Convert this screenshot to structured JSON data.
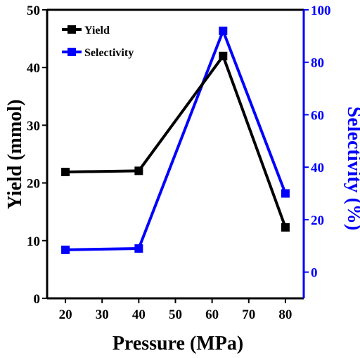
{
  "chart_data": {
    "type": "line",
    "x": [
      20,
      40,
      63,
      80
    ],
    "xlabel": "Pressure (MPa)",
    "xlim": [
      15,
      85
    ],
    "xticks": [
      20,
      30,
      40,
      50,
      60,
      70,
      80
    ],
    "series": [
      {
        "name": "Yield",
        "axis": "left",
        "color": "#000000",
        "values": [
          21.9,
          22.1,
          42.0,
          12.3
        ]
      },
      {
        "name": "Selectivity",
        "axis": "right",
        "color": "#0000ff",
        "values": [
          8.5,
          9.0,
          92.0,
          30.0
        ]
      }
    ],
    "y_left": {
      "label": "Yield (mmol)",
      "ylim": [
        0,
        50
      ],
      "ticks": [
        0,
        10,
        20,
        30,
        40,
        50
      ],
      "color": "#000000"
    },
    "y_right": {
      "label": "Selectivity (%)",
      "ylim": [
        -10,
        100
      ],
      "ticks": [
        0,
        20,
        40,
        60,
        80,
        100
      ],
      "color": "#0000ff"
    },
    "legend_position": "top-left",
    "grid": false
  }
}
